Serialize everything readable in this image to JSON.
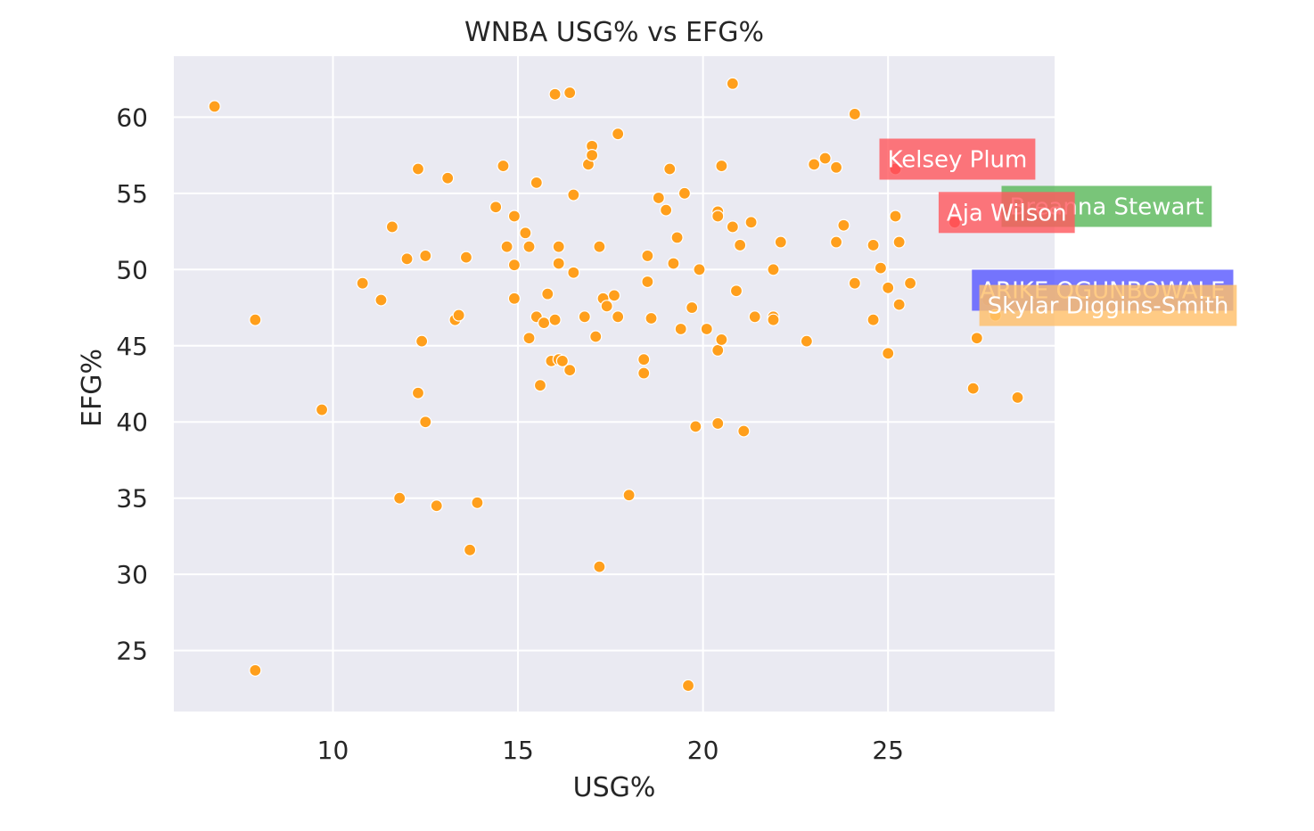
{
  "chart_data": {
    "type": "scatter",
    "title": "WNBA USG% vs EFG%",
    "xlabel": "USG%",
    "ylabel": "EFG%",
    "xlim": [
      5.7,
      29.5
    ],
    "ylim": [
      21.0,
      64.0
    ],
    "xticks": [
      10,
      15,
      20,
      25
    ],
    "yticks": [
      25,
      30,
      35,
      40,
      45,
      50,
      55,
      60
    ],
    "grid": true,
    "background": "#eaeaf2",
    "point_color": "#ff9f1c",
    "points": [
      {
        "x": 6.8,
        "y": 60.7
      },
      {
        "x": 7.9,
        "y": 46.7
      },
      {
        "x": 7.9,
        "y": 23.7
      },
      {
        "x": 9.7,
        "y": 40.8
      },
      {
        "x": 10.8,
        "y": 49.1
      },
      {
        "x": 11.3,
        "y": 48.0
      },
      {
        "x": 11.6,
        "y": 52.8
      },
      {
        "x": 11.8,
        "y": 35.0
      },
      {
        "x": 12.0,
        "y": 50.7
      },
      {
        "x": 12.3,
        "y": 56.6
      },
      {
        "x": 12.3,
        "y": 41.9
      },
      {
        "x": 12.4,
        "y": 45.3
      },
      {
        "x": 12.5,
        "y": 50.9
      },
      {
        "x": 12.5,
        "y": 40.0
      },
      {
        "x": 12.8,
        "y": 34.5
      },
      {
        "x": 13.1,
        "y": 56.0
      },
      {
        "x": 13.3,
        "y": 46.7
      },
      {
        "x": 13.4,
        "y": 47.0
      },
      {
        "x": 13.6,
        "y": 50.8
      },
      {
        "x": 13.7,
        "y": 31.6
      },
      {
        "x": 13.9,
        "y": 34.7
      },
      {
        "x": 14.4,
        "y": 54.1
      },
      {
        "x": 14.6,
        "y": 56.8
      },
      {
        "x": 14.7,
        "y": 51.5
      },
      {
        "x": 14.9,
        "y": 53.5
      },
      {
        "x": 14.9,
        "y": 50.3
      },
      {
        "x": 14.9,
        "y": 48.1
      },
      {
        "x": 15.2,
        "y": 52.4
      },
      {
        "x": 15.3,
        "y": 51.5
      },
      {
        "x": 15.3,
        "y": 45.5
      },
      {
        "x": 15.5,
        "y": 55.7
      },
      {
        "x": 15.5,
        "y": 46.9
      },
      {
        "x": 15.6,
        "y": 42.4
      },
      {
        "x": 15.7,
        "y": 46.5
      },
      {
        "x": 15.8,
        "y": 48.4
      },
      {
        "x": 15.9,
        "y": 44.0
      },
      {
        "x": 16.0,
        "y": 61.5
      },
      {
        "x": 16.0,
        "y": 46.7
      },
      {
        "x": 16.1,
        "y": 51.5
      },
      {
        "x": 16.1,
        "y": 50.4
      },
      {
        "x": 16.1,
        "y": 44.1
      },
      {
        "x": 16.2,
        "y": 44.0
      },
      {
        "x": 16.4,
        "y": 61.6
      },
      {
        "x": 16.4,
        "y": 43.4
      },
      {
        "x": 16.5,
        "y": 54.9
      },
      {
        "x": 16.5,
        "y": 49.8
      },
      {
        "x": 16.8,
        "y": 46.9
      },
      {
        "x": 16.9,
        "y": 56.9
      },
      {
        "x": 17.0,
        "y": 58.1
      },
      {
        "x": 17.0,
        "y": 57.5
      },
      {
        "x": 17.1,
        "y": 45.6
      },
      {
        "x": 17.2,
        "y": 51.5
      },
      {
        "x": 17.2,
        "y": 30.5
      },
      {
        "x": 17.3,
        "y": 48.1
      },
      {
        "x": 17.4,
        "y": 47.6
      },
      {
        "x": 17.6,
        "y": 48.3
      },
      {
        "x": 17.7,
        "y": 58.9
      },
      {
        "x": 17.7,
        "y": 46.9
      },
      {
        "x": 18.0,
        "y": 35.2
      },
      {
        "x": 18.4,
        "y": 44.1
      },
      {
        "x": 18.4,
        "y": 43.2
      },
      {
        "x": 18.5,
        "y": 50.9
      },
      {
        "x": 18.5,
        "y": 49.2
      },
      {
        "x": 18.6,
        "y": 46.8
      },
      {
        "x": 18.8,
        "y": 54.7
      },
      {
        "x": 19.0,
        "y": 53.9
      },
      {
        "x": 19.1,
        "y": 56.6
      },
      {
        "x": 19.2,
        "y": 50.4
      },
      {
        "x": 19.3,
        "y": 52.1
      },
      {
        "x": 19.4,
        "y": 46.1
      },
      {
        "x": 19.5,
        "y": 55.0
      },
      {
        "x": 19.7,
        "y": 47.5
      },
      {
        "x": 19.8,
        "y": 39.7
      },
      {
        "x": 19.6,
        "y": 22.7
      },
      {
        "x": 19.9,
        "y": 50.0
      },
      {
        "x": 20.1,
        "y": 46.1
      },
      {
        "x": 20.4,
        "y": 53.8
      },
      {
        "x": 20.4,
        "y": 53.5
      },
      {
        "x": 20.4,
        "y": 44.7
      },
      {
        "x": 20.4,
        "y": 39.9
      },
      {
        "x": 20.5,
        "y": 56.8
      },
      {
        "x": 20.5,
        "y": 45.4
      },
      {
        "x": 20.8,
        "y": 62.2
      },
      {
        "x": 20.8,
        "y": 52.8
      },
      {
        "x": 20.9,
        "y": 48.6
      },
      {
        "x": 21.0,
        "y": 51.6
      },
      {
        "x": 21.1,
        "y": 39.4
      },
      {
        "x": 21.3,
        "y": 53.1
      },
      {
        "x": 21.4,
        "y": 46.9
      },
      {
        "x": 21.9,
        "y": 50.0
      },
      {
        "x": 21.9,
        "y": 46.9
      },
      {
        "x": 21.9,
        "y": 46.7
      },
      {
        "x": 22.1,
        "y": 51.8
      },
      {
        "x": 22.8,
        "y": 45.3
      },
      {
        "x": 23.0,
        "y": 56.9
      },
      {
        "x": 23.3,
        "y": 57.3
      },
      {
        "x": 23.6,
        "y": 56.7
      },
      {
        "x": 23.6,
        "y": 51.8
      },
      {
        "x": 23.8,
        "y": 52.9
      },
      {
        "x": 24.1,
        "y": 60.2
      },
      {
        "x": 24.1,
        "y": 49.1
      },
      {
        "x": 24.6,
        "y": 51.6
      },
      {
        "x": 24.6,
        "y": 46.7
      },
      {
        "x": 24.8,
        "y": 50.1
      },
      {
        "x": 25.0,
        "y": 48.8
      },
      {
        "x": 25.0,
        "y": 44.5
      },
      {
        "x": 25.2,
        "y": 53.5
      },
      {
        "x": 25.3,
        "y": 51.8
      },
      {
        "x": 25.3,
        "y": 47.7
      },
      {
        "x": 25.6,
        "y": 49.1
      },
      {
        "x": 27.3,
        "y": 42.2
      },
      {
        "x": 27.4,
        "y": 45.5
      },
      {
        "x": 28.5,
        "y": 41.6
      }
    ],
    "annotations": [
      {
        "text": "Kelsey Plum",
        "x": 25.2,
        "y": 56.6,
        "color": "#ff5a5f",
        "point_color": "#ff3b2e"
      },
      {
        "text": "Breanna Stewart",
        "x": 28.5,
        "y": 53.5,
        "color": "#5cb85c",
        "point_color": "#ffb020"
      },
      {
        "text": "Aja Wilson",
        "x": 26.8,
        "y": 53.1,
        "color": "#ff5a5f",
        "point_color": "#ff3b2e"
      },
      {
        "text": "ARIKE OGUNBOWALE",
        "x": 27.7,
        "y": 48.0,
        "color": "#5a5aff",
        "point_color": "#ff9f1c"
      },
      {
        "text": "Skylar Diggins-Smith",
        "x": 27.9,
        "y": 47.0,
        "color": "#ffc06a",
        "point_color": "#ffb020"
      }
    ]
  }
}
